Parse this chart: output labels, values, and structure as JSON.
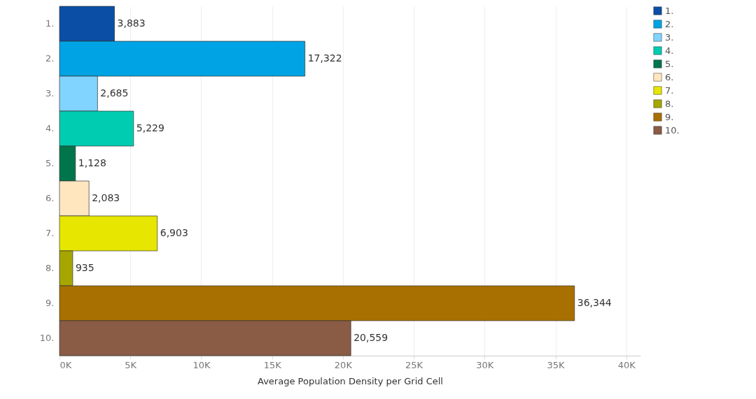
{
  "chart_data": {
    "type": "bar",
    "orientation": "horizontal",
    "xlabel": "Average Population Density per Grid Cell",
    "categories": [
      "1.",
      "2.",
      "3.",
      "4.",
      "5.",
      "6.",
      "7.",
      "8.",
      "9.",
      "10."
    ],
    "series": [
      {
        "name": "1.",
        "color": "#0a4ea6",
        "values": [
          3883,
          null,
          null,
          null,
          null,
          null,
          null,
          null,
          null,
          null
        ],
        "value_labels": [
          "3,883",
          null,
          null,
          null,
          null,
          null,
          null,
          null,
          null,
          null
        ]
      },
      {
        "name": "2.",
        "color": "#00a3e3",
        "values": [
          null,
          17322,
          null,
          null,
          null,
          null,
          null,
          null,
          null,
          null
        ],
        "value_labels": [
          null,
          "17,322",
          null,
          null,
          null,
          null,
          null,
          null,
          null,
          null
        ]
      },
      {
        "name": "3.",
        "color": "#80d4ff",
        "values": [
          null,
          null,
          2685,
          null,
          null,
          null,
          null,
          null,
          null,
          null
        ],
        "value_labels": [
          null,
          null,
          "2,685",
          null,
          null,
          null,
          null,
          null,
          null,
          null
        ]
      },
      {
        "name": "4.",
        "color": "#00ccb1",
        "values": [
          null,
          null,
          null,
          5229,
          null,
          null,
          null,
          null,
          null,
          null
        ],
        "value_labels": [
          null,
          null,
          null,
          "5,229",
          null,
          null,
          null,
          null,
          null,
          null
        ]
      },
      {
        "name": "5.",
        "color": "#00754b",
        "values": [
          null,
          null,
          null,
          null,
          1128,
          null,
          null,
          null,
          null,
          null
        ],
        "value_labels": [
          null,
          null,
          null,
          null,
          "1,128",
          null,
          null,
          null,
          null,
          null
        ]
      },
      {
        "name": "6.",
        "color": "#ffe6bf",
        "values": [
          null,
          null,
          null,
          null,
          null,
          2083,
          null,
          null,
          null,
          null
        ],
        "value_labels": [
          null,
          null,
          null,
          null,
          null,
          "2,083",
          null,
          null,
          null,
          null
        ]
      },
      {
        "name": "7.",
        "color": "#e6e600",
        "values": [
          null,
          null,
          null,
          null,
          null,
          null,
          6903,
          null,
          null,
          null
        ],
        "value_labels": [
          null,
          null,
          null,
          null,
          null,
          null,
          "6,903",
          null,
          null,
          null
        ]
      },
      {
        "name": "8.",
        "color": "#a6a600",
        "values": [
          null,
          null,
          null,
          null,
          null,
          null,
          null,
          935,
          null,
          null
        ],
        "value_labels": [
          null,
          null,
          null,
          null,
          null,
          null,
          null,
          "935",
          null,
          null
        ]
      },
      {
        "name": "9.",
        "color": "#a87000",
        "values": [
          null,
          null,
          null,
          null,
          null,
          null,
          null,
          null,
          36344,
          null
        ],
        "value_labels": [
          null,
          null,
          null,
          null,
          null,
          null,
          null,
          null,
          "36,344",
          null
        ]
      },
      {
        "name": "10.",
        "color": "#8a5b45",
        "values": [
          null,
          null,
          null,
          null,
          null,
          null,
          null,
          null,
          null,
          20559
        ],
        "value_labels": [
          null,
          null,
          null,
          null,
          null,
          null,
          null,
          null,
          null,
          "20,559"
        ]
      }
    ],
    "xlim": [
      0,
      41000
    ],
    "xticks": [
      {
        "value": 0,
        "label": "0K"
      },
      {
        "value": 5000,
        "label": "5K"
      },
      {
        "value": 10000,
        "label": "10K"
      },
      {
        "value": 15000,
        "label": "15K"
      },
      {
        "value": 20000,
        "label": "20K"
      },
      {
        "value": 25000,
        "label": "25K"
      },
      {
        "value": 30000,
        "label": "30K"
      },
      {
        "value": 35000,
        "label": "35K"
      },
      {
        "value": 40000,
        "label": "40K"
      }
    ],
    "grid": "x",
    "legend": "top right"
  }
}
